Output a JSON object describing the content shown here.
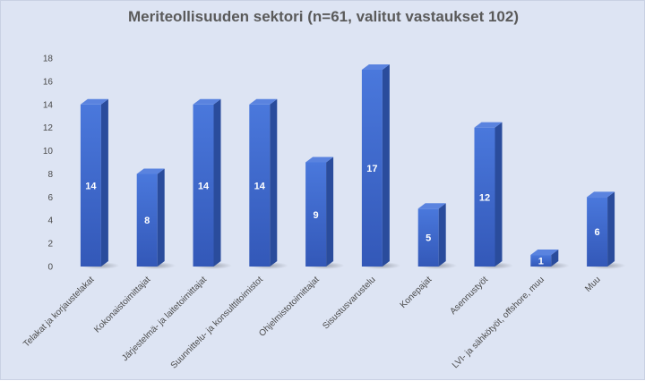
{
  "chart_data": {
    "type": "bar",
    "title": "Meriteollisuuden sektori (n=61, valitut vastaukset 102)",
    "categories": [
      "Telakat ja korjaustelakat",
      "Kokonaistoimittajat",
      "Järjestelmä- ja laitetoimittajat",
      "Suunnittelu- ja konsulttitoimistot",
      "Ohjelmistotoimittajat",
      "Sisustusvarustelu",
      "Konepajat",
      "Asennustyöt",
      "LVI- ja sähkötyöt, offshore, muu",
      "Muu"
    ],
    "values": [
      14,
      8,
      14,
      14,
      9,
      17,
      5,
      12,
      1,
      6
    ],
    "yticks": [
      0,
      2,
      4,
      6,
      8,
      10,
      12,
      14,
      16,
      18
    ],
    "ylim": [
      0,
      18
    ],
    "xlabel": "",
    "ylabel": "",
    "grid": false,
    "legend": "none",
    "colors": {
      "bar_front": "#3f6ad0",
      "bar_side": "#2a4c9c",
      "bar_top": "#5a83df",
      "background": "#dde4f3"
    }
  }
}
